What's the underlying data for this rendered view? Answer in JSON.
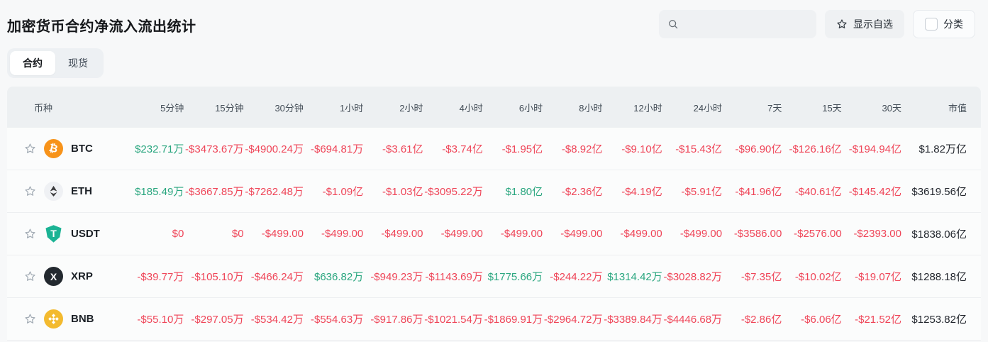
{
  "page": {
    "title": "加密货币合约净流入流出统计",
    "tabs": [
      {
        "label": "合约",
        "active": true
      },
      {
        "label": "现货",
        "active": false
      }
    ]
  },
  "controls": {
    "search": {
      "value": "",
      "placeholder": ""
    },
    "show_favorites_label": "显示自选",
    "category_label": "分类",
    "category_checked": false
  },
  "colors": {
    "positive": "#2aa67f",
    "negative": "#ef4558",
    "neutral": "#23272e",
    "btc": "#f7931a",
    "eth_badge_bg": "#eff1f4",
    "eth_glyph": "#3b3b3d",
    "usdt": "#1bb394",
    "xrp": "#23292f",
    "bnb": "#f3ba2f"
  },
  "table": {
    "columns": [
      "币种",
      "5分钟",
      "15分钟",
      "30分钟",
      "1小时",
      "2小时",
      "4小时",
      "6小时",
      "8小时",
      "12小时",
      "24小时",
      "7天",
      "15天",
      "30天",
      "市值"
    ],
    "rows": [
      {
        "symbol": "BTC",
        "icon": "btc-icon",
        "values": [
          {
            "text": "$232.71万",
            "trend": "up"
          },
          {
            "text": "-$3473.67万",
            "trend": "down"
          },
          {
            "text": "-$4900.24万",
            "trend": "down"
          },
          {
            "text": "-$694.81万",
            "trend": "down"
          },
          {
            "text": "-$3.61亿",
            "trend": "down"
          },
          {
            "text": "-$3.74亿",
            "trend": "down"
          },
          {
            "text": "-$1.95亿",
            "trend": "down"
          },
          {
            "text": "-$8.92亿",
            "trend": "down"
          },
          {
            "text": "-$9.10亿",
            "trend": "down"
          },
          {
            "text": "-$15.43亿",
            "trend": "down"
          },
          {
            "text": "-$96.90亿",
            "trend": "down"
          },
          {
            "text": "-$126.16亿",
            "trend": "down"
          },
          {
            "text": "-$194.94亿",
            "trend": "down"
          }
        ],
        "market_cap": "$1.82万亿"
      },
      {
        "symbol": "ETH",
        "icon": "eth-icon",
        "values": [
          {
            "text": "$185.49万",
            "trend": "up"
          },
          {
            "text": "-$3667.85万",
            "trend": "down"
          },
          {
            "text": "-$7262.48万",
            "trend": "down"
          },
          {
            "text": "-$1.09亿",
            "trend": "down"
          },
          {
            "text": "-$1.03亿",
            "trend": "down"
          },
          {
            "text": "-$3095.22万",
            "trend": "down"
          },
          {
            "text": "$1.80亿",
            "trend": "up"
          },
          {
            "text": "-$2.36亿",
            "trend": "down"
          },
          {
            "text": "-$4.19亿",
            "trend": "down"
          },
          {
            "text": "-$5.91亿",
            "trend": "down"
          },
          {
            "text": "-$41.96亿",
            "trend": "down"
          },
          {
            "text": "-$40.61亿",
            "trend": "down"
          },
          {
            "text": "-$145.42亿",
            "trend": "down"
          }
        ],
        "market_cap": "$3619.56亿"
      },
      {
        "symbol": "USDT",
        "icon": "usdt-icon",
        "values": [
          {
            "text": "$0",
            "trend": "down"
          },
          {
            "text": "$0",
            "trend": "down"
          },
          {
            "text": "-$499.00",
            "trend": "down"
          },
          {
            "text": "-$499.00",
            "trend": "down"
          },
          {
            "text": "-$499.00",
            "trend": "down"
          },
          {
            "text": "-$499.00",
            "trend": "down"
          },
          {
            "text": "-$499.00",
            "trend": "down"
          },
          {
            "text": "-$499.00",
            "trend": "down"
          },
          {
            "text": "-$499.00",
            "trend": "down"
          },
          {
            "text": "-$499.00",
            "trend": "down"
          },
          {
            "text": "-$3586.00",
            "trend": "down"
          },
          {
            "text": "-$2576.00",
            "trend": "down"
          },
          {
            "text": "-$2393.00",
            "trend": "down"
          }
        ],
        "market_cap": "$1838.06亿"
      },
      {
        "symbol": "XRP",
        "icon": "xrp-icon",
        "values": [
          {
            "text": "-$39.77万",
            "trend": "down"
          },
          {
            "text": "-$105.10万",
            "trend": "down"
          },
          {
            "text": "-$466.24万",
            "trend": "down"
          },
          {
            "text": "$636.82万",
            "trend": "up"
          },
          {
            "text": "-$949.23万",
            "trend": "down"
          },
          {
            "text": "-$1143.69万",
            "trend": "down"
          },
          {
            "text": "$1775.66万",
            "trend": "up"
          },
          {
            "text": "-$244.22万",
            "trend": "down"
          },
          {
            "text": "$1314.42万",
            "trend": "up"
          },
          {
            "text": "-$3028.82万",
            "trend": "down"
          },
          {
            "text": "-$7.35亿",
            "trend": "down"
          },
          {
            "text": "-$10.02亿",
            "trend": "down"
          },
          {
            "text": "-$19.07亿",
            "trend": "down"
          }
        ],
        "market_cap": "$1288.18亿"
      },
      {
        "symbol": "BNB",
        "icon": "bnb-icon",
        "values": [
          {
            "text": "-$55.10万",
            "trend": "down"
          },
          {
            "text": "-$297.05万",
            "trend": "down"
          },
          {
            "text": "-$534.42万",
            "trend": "down"
          },
          {
            "text": "-$554.63万",
            "trend": "down"
          },
          {
            "text": "-$917.86万",
            "trend": "down"
          },
          {
            "text": "-$1021.54万",
            "trend": "down"
          },
          {
            "text": "-$1869.91万",
            "trend": "down"
          },
          {
            "text": "-$2964.72万",
            "trend": "down"
          },
          {
            "text": "-$3389.84万",
            "trend": "down"
          },
          {
            "text": "-$4446.68万",
            "trend": "down"
          },
          {
            "text": "-$2.86亿",
            "trend": "down"
          },
          {
            "text": "-$6.06亿",
            "trend": "down"
          },
          {
            "text": "-$21.52亿",
            "trend": "down"
          }
        ],
        "market_cap": "$1253.82亿"
      }
    ]
  }
}
